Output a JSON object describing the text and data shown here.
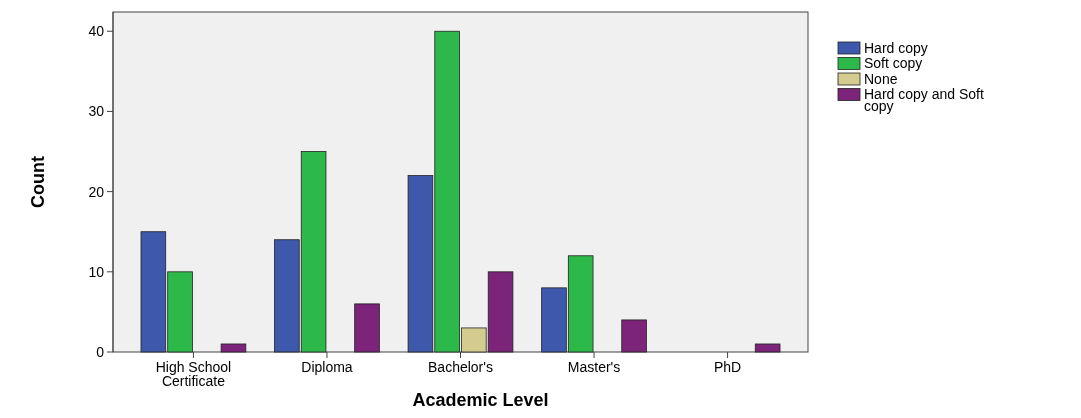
{
  "chart_data": {
    "type": "bar",
    "xlabel": "Academic Level",
    "ylabel": "Count",
    "categories": [
      "High School Certificate",
      "Diploma",
      "Bachelor's",
      "Master's",
      "PhD"
    ],
    "series": [
      {
        "name": "Hard copy",
        "color": "#3e58ac",
        "values": [
          15,
          14,
          22,
          8,
          null
        ]
      },
      {
        "name": "Soft copy",
        "color": "#2db84a",
        "values": [
          10,
          25,
          40,
          12,
          null
        ]
      },
      {
        "name": "None",
        "color": "#d4cc8e",
        "values": [
          null,
          null,
          3,
          null,
          null
        ]
      },
      {
        "name": "Hard copy and Soft copy",
        "color": "#7b2479",
        "values": [
          1,
          6,
          10,
          4,
          1
        ]
      }
    ],
    "ylim": [
      0,
      42.4
    ],
    "yticks": [
      0,
      10,
      20,
      30,
      40
    ],
    "grid": false,
    "legend": "right"
  }
}
